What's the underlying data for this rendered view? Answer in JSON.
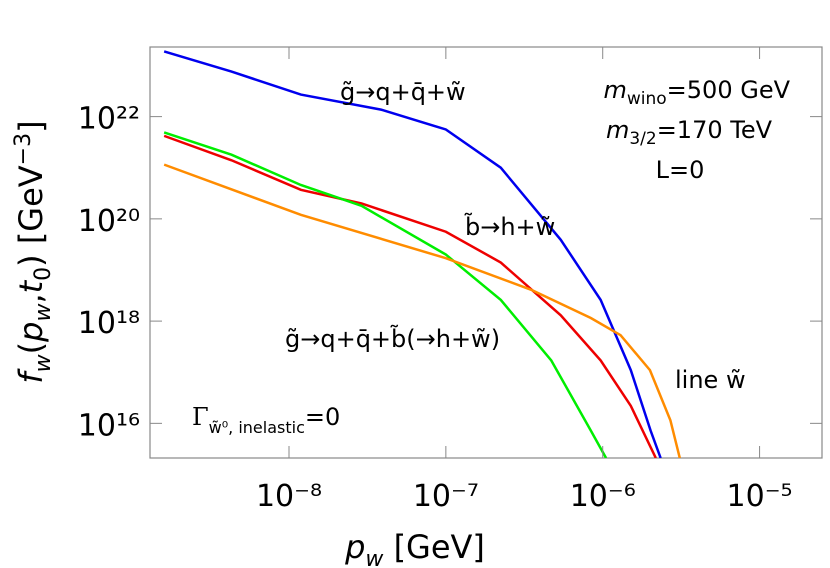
{
  "chart_data": {
    "type": "line",
    "log_x": true,
    "log_y": true,
    "xlim": [
      1.3e-09,
      2.5e-05
    ],
    "ylim": [
      2100000000000000.0,
      2.3e+23
    ],
    "xticks": [
      {
        "value": 1e-08,
        "label": "10⁻⁸"
      },
      {
        "value": 1e-07,
        "label": "10⁻⁷"
      },
      {
        "value": 1e-06,
        "label": "10⁻⁶"
      },
      {
        "value": 1e-05,
        "label": "10⁻⁵"
      }
    ],
    "yticks": [
      {
        "value": 1e+16,
        "label": "10¹⁶"
      },
      {
        "value": 1e+18,
        "label": "10¹⁸"
      },
      {
        "value": 1e+20,
        "label": "10²⁰"
      },
      {
        "value": 1e+22,
        "label": "10²²"
      }
    ],
    "x_label": [
      "p",
      "w",
      " [GeV]"
    ],
    "y_label": [
      "f",
      "w",
      "(",
      "p",
      "w",
      ",",
      "t",
      "0",
      ") [GeV",
      "−3",
      "]"
    ],
    "annotations": [
      [
        "m",
        "wino",
        "=500 GeV"
      ],
      [
        "m",
        "3/2",
        "=170 TeV"
      ],
      [
        "L=0"
      ],
      [
        "Γ",
        "w̃⁰, inelastic",
        "=0"
      ]
    ],
    "series": [
      {
        "name": "g̃→q+q̄+w̃",
        "color": "#0000ee",
        "x": [
          1.6e-09,
          4.3e-09,
          1.19e-08,
          3.86e-08,
          1e-07,
          2.24e-07,
          5.4e-07,
          9.7e-07,
          1.51e-06,
          2.02e-06,
          2.34e-06
        ],
        "values": [
          1.88e+23,
          7.6e+22,
          2.7e+22,
          1.37e+22,
          5.6e+21,
          1e+21,
          3.9e+19,
          2.6e+18,
          1.1e+17,
          7200000000000000.0,
          2100000000000000.0
        ]
      },
      {
        "name": "b̃→h+w̃",
        "color": "#ee0000",
        "x": [
          1.6e-09,
          4.3e-09,
          1.19e-08,
          2.9e-08,
          1e-07,
          2.24e-07,
          5.4e-07,
          9.7e-07,
          1.51e-06,
          2.18e-06
        ],
        "values": [
          4.2e+21,
          1.4e+21,
          3.7e+20,
          2e+20,
          5.6e+19,
          1.4e+19,
          1.3e+18,
          1.7e+17,
          2.2e+16,
          2100000000000000.0
        ]
      },
      {
        "name": "g̃→q+q̄+b̃(→h+w̃)",
        "color": "#00ee00",
        "x": [
          1.6e-09,
          4.3e-09,
          1.19e-08,
          2.9e-08,
          1e-07,
          2.24e-07,
          4.7e-07,
          8.4e-07,
          1.05e-06
        ],
        "values": [
          4.9e+21,
          1.8e+21,
          4.6e+20,
          1.8e+20,
          2e+19,
          2.6e+18,
          1.7e+17,
          7200000000000000.0,
          2100000000000000.0
        ]
      },
      {
        "name": "line w̃",
        "color": "#ff8c00",
        "x": [
          1.6e-09,
          1.19e-08,
          1e-07,
          3.5e-07,
          8.4e-07,
          1.3e-06,
          2e-06,
          2.7e-06,
          3.1e-06
        ],
        "values": [
          1.15e+21,
          1.2e+20,
          1.7e+19,
          4.1e+18,
          1.15e+18,
          5.3e+17,
          1.1e+17,
          1.15e+16,
          2100000000000000.0
        ]
      }
    ]
  }
}
